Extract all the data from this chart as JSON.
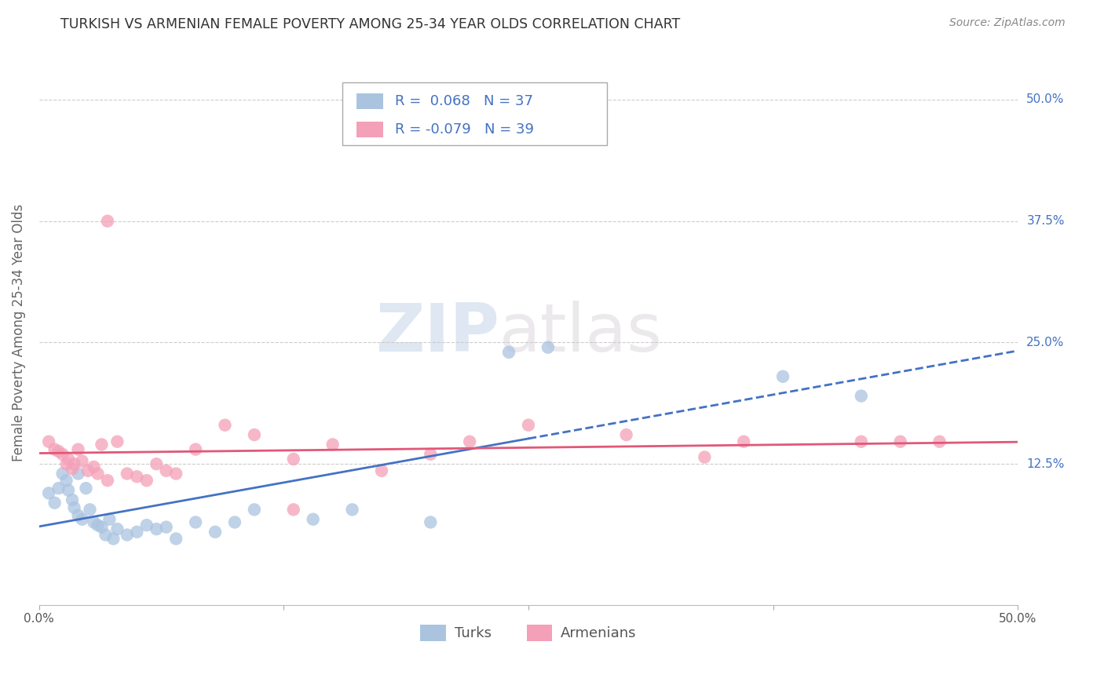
{
  "title": "TURKISH VS ARMENIAN FEMALE POVERTY AMONG 25-34 YEAR OLDS CORRELATION CHART",
  "source": "Source: ZipAtlas.com",
  "ylabel": "Female Poverty Among 25-34 Year Olds",
  "xlim": [
    0.0,
    0.5
  ],
  "ylim": [
    -0.02,
    0.54
  ],
  "xtick_positions": [
    0.0,
    0.125,
    0.25,
    0.375,
    0.5
  ],
  "xtick_labels": [
    "0.0%",
    "",
    "",
    "",
    "50.0%"
  ],
  "ytick_positions": [
    0.125,
    0.25,
    0.375,
    0.5
  ],
  "ytick_labels": [
    "12.5%",
    "25.0%",
    "37.5%",
    "50.0%"
  ],
  "turk_r": 0.068,
  "turk_n": 37,
  "arm_r": -0.079,
  "arm_n": 39,
  "turk_color": "#aac4e0",
  "arm_color": "#f4a0b8",
  "turk_line_color": "#4472c4",
  "arm_line_color": "#e05878",
  "label_color": "#4472c4",
  "turk_label": "Turks",
  "arm_label": "Armenians",
  "watermark_zip": "ZIP",
  "watermark_atlas": "atlas",
  "turk_x": [
    0.005,
    0.008,
    0.01,
    0.012,
    0.014,
    0.015,
    0.017,
    0.018,
    0.02,
    0.02,
    0.022,
    0.024,
    0.026,
    0.028,
    0.03,
    0.032,
    0.034,
    0.036,
    0.038,
    0.04,
    0.045,
    0.05,
    0.055,
    0.06,
    0.065,
    0.07,
    0.08,
    0.09,
    0.1,
    0.11,
    0.14,
    0.16,
    0.2,
    0.24,
    0.26,
    0.38,
    0.42
  ],
  "turk_y": [
    0.095,
    0.085,
    0.1,
    0.115,
    0.108,
    0.098,
    0.088,
    0.08,
    0.115,
    0.072,
    0.068,
    0.1,
    0.078,
    0.065,
    0.062,
    0.06,
    0.052,
    0.068,
    0.048,
    0.058,
    0.052,
    0.055,
    0.062,
    0.058,
    0.06,
    0.048,
    0.065,
    0.055,
    0.065,
    0.078,
    0.068,
    0.078,
    0.065,
    0.24,
    0.245,
    0.215,
    0.195
  ],
  "arm_x": [
    0.005,
    0.008,
    0.01,
    0.012,
    0.014,
    0.015,
    0.017,
    0.018,
    0.02,
    0.022,
    0.025,
    0.028,
    0.03,
    0.032,
    0.035,
    0.04,
    0.045,
    0.05,
    0.055,
    0.06,
    0.065,
    0.07,
    0.08,
    0.095,
    0.11,
    0.13,
    0.15,
    0.175,
    0.2,
    0.22,
    0.25,
    0.3,
    0.34,
    0.36,
    0.42,
    0.44,
    0.46,
    0.035,
    0.13
  ],
  "arm_y": [
    0.148,
    0.14,
    0.138,
    0.135,
    0.125,
    0.13,
    0.12,
    0.125,
    0.14,
    0.128,
    0.118,
    0.122,
    0.115,
    0.145,
    0.108,
    0.148,
    0.115,
    0.112,
    0.108,
    0.125,
    0.118,
    0.115,
    0.14,
    0.165,
    0.155,
    0.13,
    0.145,
    0.118,
    0.135,
    0.148,
    0.165,
    0.155,
    0.132,
    0.148,
    0.148,
    0.148,
    0.148,
    0.375,
    0.078
  ]
}
